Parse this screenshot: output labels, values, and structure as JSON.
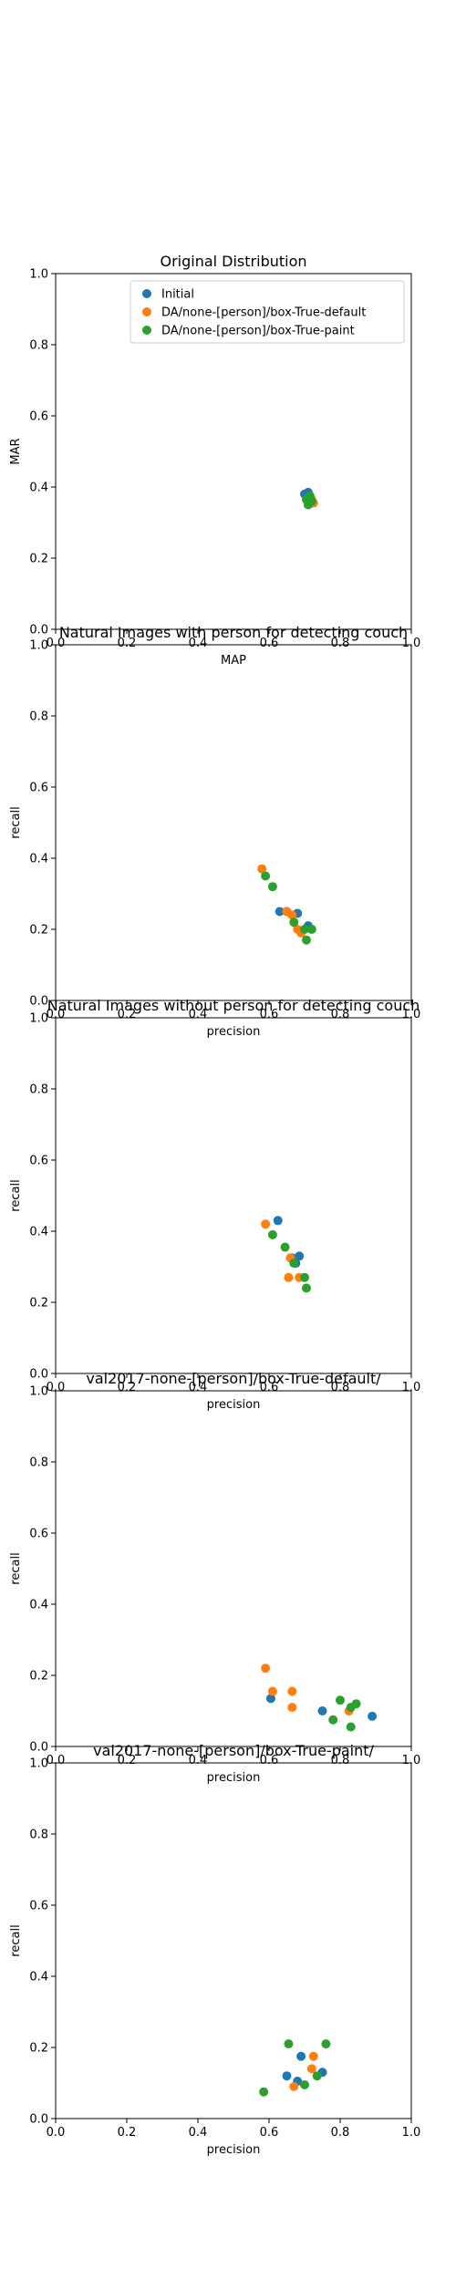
{
  "colors": {
    "initial": "#1f77b4",
    "default": "#ff7f0e",
    "paint": "#2ca02c"
  },
  "chart_data": [
    {
      "type": "scatter",
      "title": "Original Distribution",
      "xlabel": "MAP",
      "ylabel": "MAR",
      "xlim": [
        0,
        1
      ],
      "ylim": [
        0,
        1
      ],
      "xticks": [
        "0.0",
        "0.2",
        "0.4",
        "0.6",
        "0.8",
        "1.0"
      ],
      "yticks": [
        "0.0",
        "0.2",
        "0.4",
        "0.6",
        "0.8",
        "1.0"
      ],
      "grid": false,
      "legend": "top-right",
      "series": [
        {
          "name": "Initial",
          "color_key": "initial",
          "points": [
            [
              0.7,
              0.38
            ],
            [
              0.71,
              0.385
            ],
            [
              0.715,
              0.37
            ],
            [
              0.705,
              0.375
            ]
          ]
        },
        {
          "name": "DA/none-[person]/box-True-default",
          "color_key": "default",
          "points": [
            [
              0.725,
              0.355
            ],
            [
              0.71,
              0.36
            ],
            [
              0.72,
              0.365
            ]
          ]
        },
        {
          "name": "DA/none-[person]/box-True-paint",
          "color_key": "paint",
          "points": [
            [
              0.71,
              0.35
            ],
            [
              0.705,
              0.365
            ],
            [
              0.715,
              0.375
            ],
            [
              0.72,
              0.36
            ]
          ]
        }
      ]
    },
    {
      "type": "scatter",
      "title": "Natural Images with person for detecting couch",
      "xlabel": "precision",
      "ylabel": "recall",
      "xlim": [
        0,
        1
      ],
      "ylim": [
        0,
        1
      ],
      "xticks": [
        "0.0",
        "0.2",
        "0.4",
        "0.6",
        "0.8",
        "1.0"
      ],
      "yticks": [
        "0.0",
        "0.2",
        "0.4",
        "0.6",
        "0.8",
        "1.0"
      ],
      "grid": false,
      "series": [
        {
          "color_key": "initial",
          "points": [
            [
              0.63,
              0.25
            ],
            [
              0.65,
              0.25
            ],
            [
              0.68,
              0.245
            ],
            [
              0.71,
              0.21
            ]
          ]
        },
        {
          "color_key": "default",
          "points": [
            [
              0.58,
              0.37
            ],
            [
              0.65,
              0.25
            ],
            [
              0.665,
              0.24
            ],
            [
              0.68,
              0.2
            ],
            [
              0.69,
              0.19
            ]
          ]
        },
        {
          "color_key": "paint",
          "points": [
            [
              0.59,
              0.35
            ],
            [
              0.61,
              0.32
            ],
            [
              0.67,
              0.22
            ],
            [
              0.7,
              0.2
            ],
            [
              0.72,
              0.2
            ],
            [
              0.705,
              0.17
            ]
          ]
        }
      ]
    },
    {
      "type": "scatter",
      "title": "Natural Images without person for detecting couch",
      "xlabel": "precision",
      "ylabel": "recall",
      "xlim": [
        0,
        1
      ],
      "ylim": [
        0,
        1
      ],
      "xticks": [
        "0.0",
        "0.2",
        "0.4",
        "0.6",
        "0.8",
        "1.0"
      ],
      "yticks": [
        "0.0",
        "0.2",
        "0.4",
        "0.6",
        "0.8",
        "1.0"
      ],
      "grid": false,
      "series": [
        {
          "color_key": "initial",
          "points": [
            [
              0.625,
              0.43
            ],
            [
              0.665,
              0.325
            ],
            [
              0.685,
              0.33
            ],
            [
              0.675,
              0.31
            ]
          ]
        },
        {
          "color_key": "default",
          "points": [
            [
              0.59,
              0.42
            ],
            [
              0.655,
              0.27
            ],
            [
              0.685,
              0.27
            ],
            [
              0.66,
              0.325
            ]
          ]
        },
        {
          "color_key": "paint",
          "points": [
            [
              0.61,
              0.39
            ],
            [
              0.645,
              0.355
            ],
            [
              0.67,
              0.31
            ],
            [
              0.7,
              0.27
            ],
            [
              0.705,
              0.24
            ]
          ]
        }
      ]
    },
    {
      "type": "scatter",
      "title": "val2017-none-[person]/box-True-default/",
      "xlabel": "precision",
      "ylabel": "recall",
      "xlim": [
        0,
        1
      ],
      "ylim": [
        0,
        1
      ],
      "xticks": [
        "0.0",
        "0.2",
        "0.4",
        "0.6",
        "0.8",
        "1.0"
      ],
      "yticks": [
        "0.0",
        "0.2",
        "0.4",
        "0.6",
        "0.8",
        "1.0"
      ],
      "grid": false,
      "series": [
        {
          "color_key": "initial",
          "points": [
            [
              0.605,
              0.135
            ],
            [
              0.75,
              0.1
            ],
            [
              0.89,
              0.085
            ]
          ]
        },
        {
          "color_key": "default",
          "points": [
            [
              0.59,
              0.22
            ],
            [
              0.61,
              0.155
            ],
            [
              0.665,
              0.155
            ],
            [
              0.665,
              0.11
            ],
            [
              0.825,
              0.1
            ]
          ]
        },
        {
          "color_key": "paint",
          "points": [
            [
              0.78,
              0.075
            ],
            [
              0.8,
              0.13
            ],
            [
              0.83,
              0.11
            ],
            [
              0.845,
              0.12
            ],
            [
              0.83,
              0.055
            ]
          ]
        }
      ]
    },
    {
      "type": "scatter",
      "title": "val2017-none-[person]/box-True-paint/",
      "xlabel": "precision",
      "ylabel": "recall",
      "xlim": [
        0,
        1
      ],
      "ylim": [
        0,
        1
      ],
      "xticks": [
        "0.0",
        "0.2",
        "0.4",
        "0.6",
        "0.8",
        "1.0"
      ],
      "yticks": [
        "0.0",
        "0.2",
        "0.4",
        "0.6",
        "0.8",
        "1.0"
      ],
      "grid": false,
      "series": [
        {
          "color_key": "initial",
          "points": [
            [
              0.65,
              0.12
            ],
            [
              0.69,
              0.175
            ],
            [
              0.75,
              0.13
            ],
            [
              0.68,
              0.105
            ]
          ]
        },
        {
          "color_key": "default",
          "points": [
            [
              0.67,
              0.09
            ],
            [
              0.725,
              0.175
            ],
            [
              0.72,
              0.14
            ]
          ]
        },
        {
          "color_key": "paint",
          "points": [
            [
              0.585,
              0.075
            ],
            [
              0.655,
              0.21
            ],
            [
              0.7,
              0.095
            ],
            [
              0.735,
              0.12
            ],
            [
              0.76,
              0.21
            ]
          ]
        }
      ]
    }
  ]
}
